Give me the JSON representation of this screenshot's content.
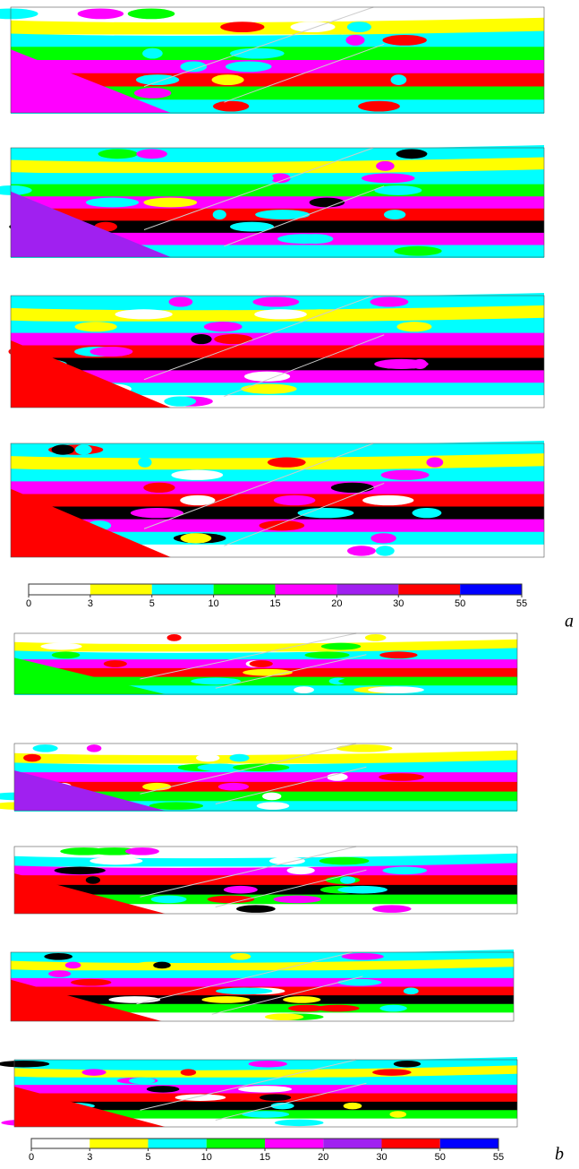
{
  "figure_a": {
    "label": "a",
    "colorbar": {
      "bins": [
        0,
        3,
        5,
        10,
        15,
        20,
        30,
        50,
        55
      ],
      "colors": [
        "#ffffff",
        "#ffff00",
        "#00ffff",
        "#00ff00",
        "#ff00ff",
        "#a020f0",
        "#ff0000",
        "#0000ff"
      ]
    }
  },
  "figure_b": {
    "label": "b",
    "colorbar": {
      "bins": [
        0,
        3,
        5,
        10,
        15,
        20,
        30,
        50,
        55
      ],
      "colors": [
        "#ffffff",
        "#ffff00",
        "#00ffff",
        "#00ff00",
        "#ff00ff",
        "#a020f0",
        "#ff0000",
        "#0000ff"
      ]
    }
  }
}
